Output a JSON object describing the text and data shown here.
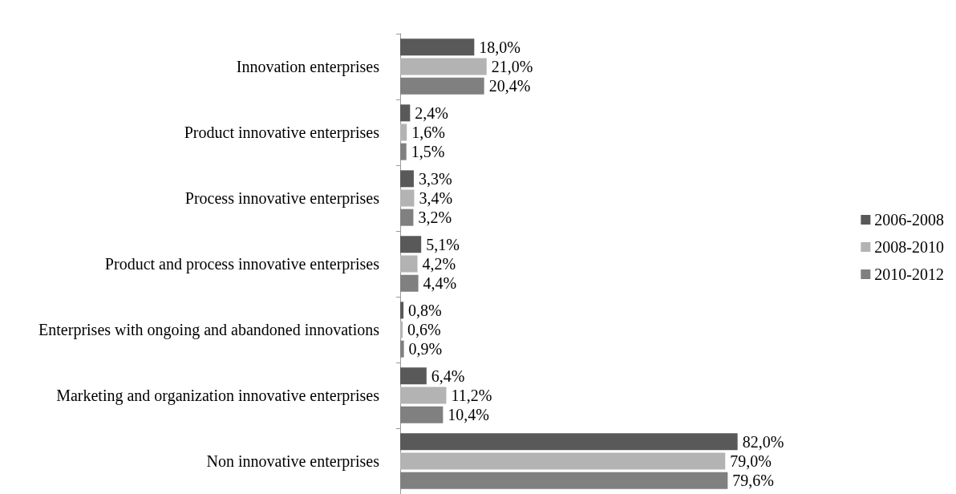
{
  "chart_data": {
    "type": "bar",
    "orientation": "horizontal",
    "categories": [
      "Innovation enterprises",
      "Product innovative enterprises",
      "Process innovative enterprises",
      "Product and process innovative enterprises",
      "Enterprises with ongoing and abandoned innovations",
      "Marketing and organization innovative enterprises",
      "Non innovative enterprises"
    ],
    "series": [
      {
        "name": "2006-2008",
        "color": "#595959",
        "values": [
          18.0,
          2.4,
          3.3,
          5.1,
          0.8,
          6.4,
          82.0
        ],
        "value_labels": [
          "18,0%",
          "2,4%",
          "3,3%",
          "5,1%",
          "0,8%",
          "6,4%",
          "82,0%"
        ]
      },
      {
        "name": "2008-2010",
        "color": "#b3b3b3",
        "values": [
          21.0,
          1.6,
          3.4,
          4.2,
          0.6,
          11.2,
          79.0
        ],
        "value_labels": [
          "21,0%",
          "1,6%",
          "3,4%",
          "4,2%",
          "0,6%",
          "11,2%",
          "79,0%"
        ]
      },
      {
        "name": "2010-2012",
        "color": "#808080",
        "values": [
          20.4,
          1.5,
          3.2,
          4.4,
          0.9,
          10.4,
          79.6
        ],
        "value_labels": [
          "20,4%",
          "1,5%",
          "3,2%",
          "4,4%",
          "0,9%",
          "10,4%",
          "79,6%"
        ]
      }
    ],
    "legend": "right",
    "grid": false
  }
}
